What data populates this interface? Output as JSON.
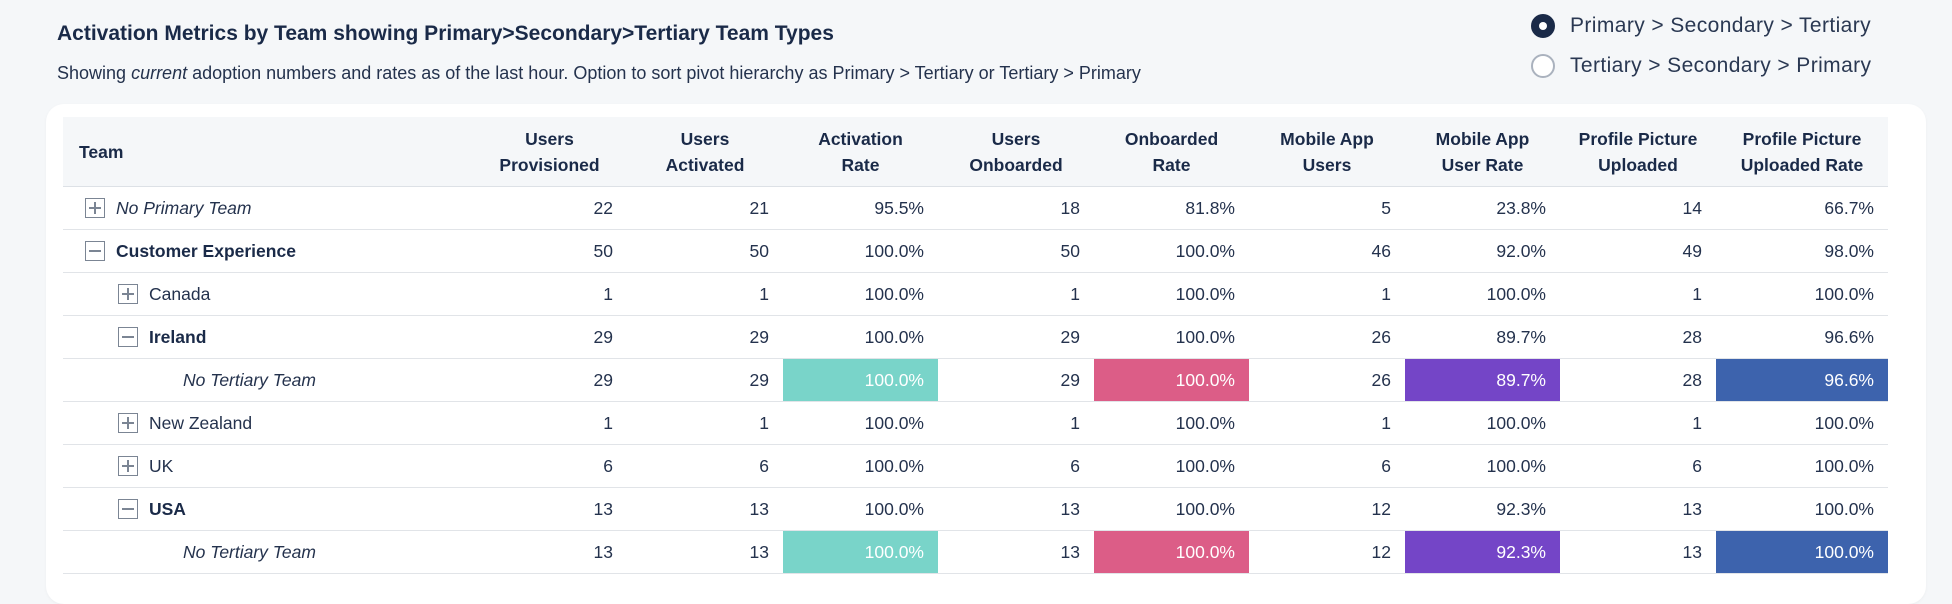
{
  "header": {
    "title": "Activation Metrics by Team showing Primary>Secondary>Tertiary Team Types",
    "subtitle_pre": "Showing ",
    "subtitle_em": "current",
    "subtitle_post": " adoption numbers and rates as of the last hour. Option to sort pivot hierarchy as Primary > Tertiary or Tertiary > Primary"
  },
  "sort_options": [
    {
      "label": "Primary > Secondary > Tertiary",
      "selected": true
    },
    {
      "label": "Tertiary > Secondary > Primary",
      "selected": false
    }
  ],
  "table": {
    "columns": {
      "team": "Team",
      "c1": [
        "Users",
        "Provisioned"
      ],
      "c2": [
        "Users",
        "Activated"
      ],
      "c3": [
        "Activation",
        "Rate"
      ],
      "c4": [
        "Users",
        "Onboarded"
      ],
      "c5": [
        "Onboarded",
        "Rate"
      ],
      "c6": [
        "Mobile App",
        "Users"
      ],
      "c7": [
        "Mobile App",
        "User Rate"
      ],
      "c8": [
        "Profile Picture",
        "Uploaded"
      ],
      "c9": [
        "Profile Picture",
        "Uploaded Rate"
      ]
    },
    "rows": [
      {
        "name": "No Primary Team",
        "cells": [
          "22",
          "21",
          "95.5%",
          "18",
          "81.8%",
          "5",
          "23.8%",
          "14",
          "66.7%"
        ]
      },
      {
        "name": "Customer Experience",
        "cells": [
          "50",
          "50",
          "100.0%",
          "50",
          "100.0%",
          "46",
          "92.0%",
          "49",
          "98.0%"
        ]
      },
      {
        "name": "Canada",
        "cells": [
          "1",
          "1",
          "100.0%",
          "1",
          "100.0%",
          "1",
          "100.0%",
          "1",
          "100.0%"
        ]
      },
      {
        "name": "Ireland",
        "cells": [
          "29",
          "29",
          "100.0%",
          "29",
          "100.0%",
          "26",
          "89.7%",
          "28",
          "96.6%"
        ]
      },
      {
        "name": "No Tertiary Team",
        "cells": [
          "29",
          "29",
          "100.0%",
          "29",
          "100.0%",
          "26",
          "89.7%",
          "28",
          "96.6%"
        ]
      },
      {
        "name": "New Zealand",
        "cells": [
          "1",
          "1",
          "100.0%",
          "1",
          "100.0%",
          "1",
          "100.0%",
          "1",
          "100.0%"
        ]
      },
      {
        "name": "UK",
        "cells": [
          "6",
          "6",
          "100.0%",
          "6",
          "100.0%",
          "6",
          "100.0%",
          "6",
          "100.0%"
        ]
      },
      {
        "name": "USA",
        "cells": [
          "13",
          "13",
          "100.0%",
          "13",
          "100.0%",
          "12",
          "92.3%",
          "13",
          "100.0%"
        ]
      },
      {
        "name": "No Tertiary Team",
        "cells": [
          "13",
          "13",
          "100.0%",
          "13",
          "100.0%",
          "12",
          "92.3%",
          "13",
          "100.0%"
        ]
      }
    ]
  },
  "colors": {
    "activation_highlight": "#79d4c9",
    "onboarded_highlight": "#dc5d87",
    "mobile_highlight": "#7445c7",
    "profile_highlight": "#3d63ad",
    "heading": "#1a2a48"
  }
}
